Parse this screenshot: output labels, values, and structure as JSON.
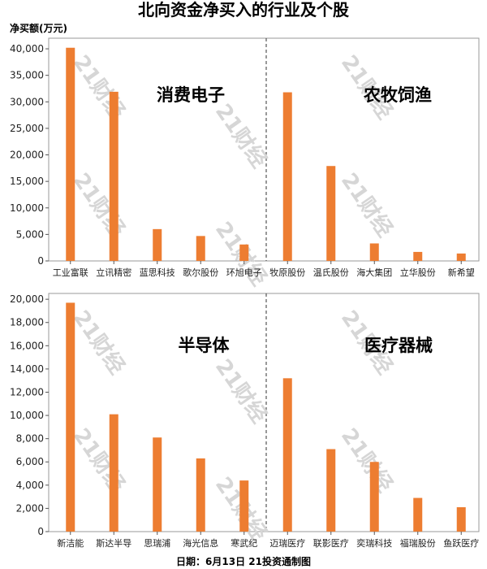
{
  "title": "北向资金净买入的行业及个股",
  "y_unit_label": "净买额(万元)",
  "footer": "日期：6月13日 21投资通制图",
  "watermark": "21财经",
  "bar_color": "#ED7D31",
  "chart_data": [
    {
      "type": "bar",
      "ylim": [
        0,
        42000
      ],
      "yticks": [
        0,
        5000,
        10000,
        15000,
        20000,
        25000,
        30000,
        35000,
        40000
      ],
      "ytick_labels": [
        "0",
        "5,000",
        "10,000",
        "15,000",
        "20,000",
        "25,000",
        "30,000",
        "35,000",
        "40,000"
      ],
      "grid": false,
      "groups": [
        {
          "label": "消费电子",
          "categories": [
            "工业富联",
            "立讯精密",
            "蓝思科技",
            "歌尔股份",
            "环旭电子"
          ],
          "values": [
            40200,
            31900,
            6000,
            4700,
            3100
          ]
        },
        {
          "label": "农牧饲渔",
          "categories": [
            "牧原股份",
            "温氏股份",
            "海大集团",
            "立华股份",
            "新希望"
          ],
          "values": [
            31800,
            17900,
            3300,
            1700,
            1400
          ]
        }
      ]
    },
    {
      "type": "bar",
      "ylim": [
        0,
        20500
      ],
      "yticks": [
        0,
        2000,
        4000,
        6000,
        8000,
        10000,
        12000,
        14000,
        16000,
        18000,
        20000
      ],
      "ytick_labels": [
        "0",
        "2,000",
        "4,000",
        "6,000",
        "8,000",
        "10,000",
        "12,000",
        "14,000",
        "16,000",
        "18,000",
        "20,000"
      ],
      "grid": false,
      "groups": [
        {
          "label": "半导体",
          "categories": [
            "新洁能",
            "斯达半导",
            "思瑞浦",
            "海光信息",
            "寒武纪"
          ],
          "values": [
            19700,
            10100,
            8100,
            6300,
            4400
          ]
        },
        {
          "label": "医疗器械",
          "categories": [
            "迈瑞医疗",
            "联影医疗",
            "奕瑞科技",
            "福瑞股份",
            "鱼跃医疗"
          ],
          "values": [
            13200,
            7100,
            6000,
            2900,
            2100
          ]
        }
      ]
    }
  ]
}
